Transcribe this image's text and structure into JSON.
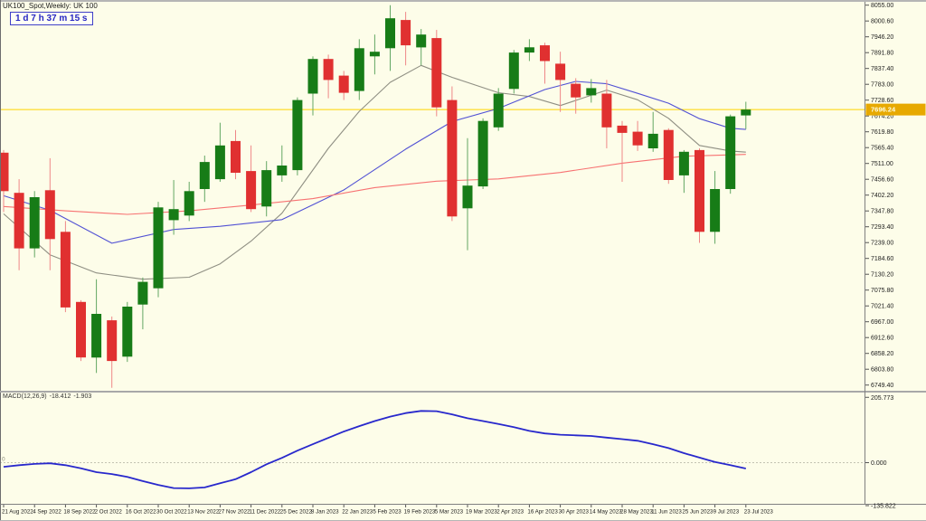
{
  "window": {
    "title": "UK100_Spot,Weekly: UK 100",
    "countdown": "1 d 7 h 37 m 15 s"
  },
  "colors": {
    "background": "#fdfde9",
    "bull": "#177c17",
    "bull_wick": "#63a763",
    "bear": "#e03030",
    "bear_wick": "#ef8787",
    "bid_line": "#ffd400",
    "price_tag_bg": "#e7a900",
    "price_tag_text": "#fffde2",
    "axis_text": "#1c1c1c",
    "macd_line": "#2828cc",
    "separator": "#a8a8a8"
  },
  "price_axis": {
    "current": "7696.24",
    "ticks": [
      "8055.00",
      "8000.60",
      "7946.20",
      "7891.80",
      "7837.40",
      "7783.00",
      "7728.60",
      "7674.20",
      "7619.80",
      "7565.40",
      "7511.00",
      "7456.60",
      "7402.20",
      "7347.80",
      "7293.40",
      "7239.00",
      "7184.60",
      "7130.20",
      "7075.80",
      "7021.40",
      "6967.00",
      "6912.60",
      "6858.20",
      "6803.80",
      "6749.40"
    ]
  },
  "time_axis": {
    "labels": [
      "21 Aug 2022",
      "4 Sep 2022",
      "18 Sep 2022",
      "2 Oct 2022",
      "16 Oct 2022",
      "30 Oct 2022",
      "13 Nov 2022",
      "27 Nov 2022",
      "11 Dec 2022",
      "25 Dec 2022",
      "8 Jan 2023",
      "22 Jan 2023",
      "5 Feb 2023",
      "19 Feb 2023",
      "5 Mar 2023",
      "19 Mar 2023",
      "2 Apr 2023",
      "16 Apr 2023",
      "30 Apr 2023",
      "14 May 2023",
      "28 May 2023",
      "11 Jun 2023",
      "25 Jun 2023",
      "9 Jul 2023",
      "23 Jul 2023"
    ]
  },
  "macd": {
    "name": "MACD(12,26,9)",
    "main_value": "-18.412",
    "signal_value": "-1.903",
    "zero_label": "0",
    "axis_ticks": [
      "205.773",
      "0.000",
      "-135.822"
    ]
  },
  "chart_data": {
    "type": "candlestick",
    "symbol": "UK100_Spot",
    "timeframe": "Weekly",
    "title": "UK100_Spot,Weekly: UK 100",
    "ylim": [
      6749.4,
      8055.0
    ],
    "current_price": 7696.24,
    "grid": "off",
    "dates": [
      "21 Aug 2022",
      "28 Aug 2022",
      "4 Sep 2022",
      "11 Sep 2022",
      "18 Sep 2022",
      "25 Sep 2022",
      "2 Oct 2022",
      "9 Oct 2022",
      "16 Oct 2022",
      "23 Oct 2022",
      "30 Oct 2022",
      "6 Nov 2022",
      "13 Nov 2022",
      "20 Nov 2022",
      "27 Nov 2022",
      "4 Dec 2022",
      "11 Dec 2022",
      "18 Dec 2022",
      "25 Dec 2022",
      "1 Jan 2023",
      "8 Jan 2023",
      "15 Jan 2023",
      "22 Jan 2023",
      "29 Jan 2023",
      "5 Feb 2023",
      "12 Feb 2023",
      "19 Feb 2023",
      "26 Feb 2023",
      "5 Mar 2023",
      "12 Mar 2023",
      "19 Mar 2023",
      "26 Mar 2023",
      "2 Apr 2023",
      "9 Apr 2023",
      "16 Apr 2023",
      "23 Apr 2023",
      "30 Apr 2023",
      "7 May 2023",
      "14 May 2023",
      "21 May 2023",
      "28 May 2023",
      "4 Jun 2023",
      "11 Jun 2023",
      "18 Jun 2023",
      "25 Jun 2023",
      "2 Jul 2023",
      "9 Jul 2023",
      "16 Jul 2023",
      "23 Jul 2023"
    ],
    "candles_ohlc": [
      [
        7548,
        7557,
        7344,
        7416
      ],
      [
        7410,
        7457,
        7144,
        7219
      ],
      [
        7219,
        7416,
        7188,
        7395
      ],
      [
        7419,
        7529,
        7144,
        7251
      ],
      [
        7276,
        7313,
        7000,
        7016
      ],
      [
        7035,
        7041,
        6832,
        6844
      ],
      [
        6844,
        7113,
        6791,
        6994
      ],
      [
        6972,
        6985,
        6740,
        6832
      ],
      [
        6847,
        7035,
        6829,
        7019
      ],
      [
        7026,
        7119,
        6941,
        7104
      ],
      [
        7082,
        7379,
        7051,
        7360
      ],
      [
        7316,
        7454,
        7266,
        7354
      ],
      [
        7332,
        7448,
        7313,
        7416
      ],
      [
        7423,
        7538,
        7379,
        7516
      ],
      [
        7457,
        7651,
        7448,
        7573
      ],
      [
        7588,
        7626,
        7457,
        7479
      ],
      [
        7485,
        7573,
        7344,
        7354
      ],
      [
        7363,
        7519,
        7329,
        7488
      ],
      [
        7470,
        7573,
        7448,
        7504
      ],
      [
        7488,
        7738,
        7470,
        7729
      ],
      [
        7751,
        7879,
        7676,
        7870
      ],
      [
        7870,
        7885,
        7735,
        7798
      ],
      [
        7813,
        7829,
        7729,
        7754
      ],
      [
        7760,
        7938,
        7729,
        7907
      ],
      [
        7879,
        7954,
        7817,
        7895
      ],
      [
        7907,
        8055,
        7829,
        8010
      ],
      [
        8004,
        8032,
        7848,
        7917
      ],
      [
        7910,
        7973,
        7848,
        7954
      ],
      [
        7942,
        7970,
        7673,
        7704
      ],
      [
        7729,
        7776,
        7313,
        7329
      ],
      [
        7357,
        7598,
        7213,
        7435
      ],
      [
        7432,
        7666,
        7423,
        7657
      ],
      [
        7635,
        7770,
        7623,
        7751
      ],
      [
        7767,
        7901,
        7751,
        7892
      ],
      [
        7892,
        7938,
        7863,
        7910
      ],
      [
        7917,
        7926,
        7785,
        7863
      ],
      [
        7854,
        7895,
        7688,
        7798
      ],
      [
        7785,
        7804,
        7682,
        7738
      ],
      [
        7745,
        7801,
        7720,
        7770
      ],
      [
        7751,
        7798,
        7563,
        7635
      ],
      [
        7641,
        7657,
        7448,
        7616
      ],
      [
        7620,
        7657,
        7554,
        7573
      ],
      [
        7563,
        7688,
        7551,
        7613
      ],
      [
        7626,
        7632,
        7441,
        7454
      ],
      [
        7470,
        7557,
        7410,
        7551
      ],
      [
        7557,
        7563,
        7238,
        7276
      ],
      [
        7276,
        7485,
        7235,
        7423
      ],
      [
        7423,
        7679,
        7407,
        7673
      ],
      [
        7676,
        7723,
        7629,
        7696.24
      ]
    ],
    "overlays": [
      {
        "name": "ma-slow",
        "color": "#f77272",
        "points": [
          [
            0,
            7363
          ],
          [
            4,
            7348
          ],
          [
            8,
            7336
          ],
          [
            12,
            7348
          ],
          [
            16,
            7368
          ],
          [
            20,
            7390
          ],
          [
            24,
            7428
          ],
          [
            28,
            7450
          ],
          [
            32,
            7458
          ],
          [
            36,
            7480
          ],
          [
            40,
            7512
          ],
          [
            44,
            7536
          ],
          [
            48,
            7542
          ]
        ]
      },
      {
        "name": "ma-mid",
        "color": "#5151d4",
        "points": [
          [
            0,
            7400
          ],
          [
            3,
            7350
          ],
          [
            7,
            7237
          ],
          [
            11,
            7284
          ],
          [
            14,
            7295
          ],
          [
            18,
            7318
          ],
          [
            22,
            7420
          ],
          [
            26,
            7560
          ],
          [
            29,
            7655
          ],
          [
            32,
            7700
          ],
          [
            35,
            7765
          ],
          [
            37,
            7793
          ],
          [
            39,
            7785
          ],
          [
            41,
            7752
          ],
          [
            43,
            7718
          ],
          [
            45,
            7665
          ],
          [
            47,
            7632
          ],
          [
            48,
            7628
          ]
        ]
      },
      {
        "name": "ma-fast",
        "color": "#8f8f83",
        "points": [
          [
            0,
            7338
          ],
          [
            3,
            7197
          ],
          [
            6,
            7135
          ],
          [
            9,
            7113
          ],
          [
            12,
            7120
          ],
          [
            14,
            7166
          ],
          [
            16,
            7244
          ],
          [
            18,
            7340
          ],
          [
            21,
            7563
          ],
          [
            23,
            7690
          ],
          [
            25,
            7790
          ],
          [
            27,
            7848
          ],
          [
            29,
            7807
          ],
          [
            32,
            7754
          ],
          [
            34,
            7741
          ],
          [
            36,
            7710
          ],
          [
            39,
            7763
          ],
          [
            41,
            7730
          ],
          [
            43,
            7666
          ],
          [
            45,
            7573
          ],
          [
            47,
            7554
          ],
          [
            48,
            7550
          ]
        ]
      }
    ],
    "indicator": {
      "name": "MACD(12,26,9)",
      "type": "line",
      "ylim": [
        -135.822,
        205.773
      ],
      "displayed_values": [
        -18.412,
        -1.903
      ],
      "series": [
        -13,
        -8,
        -4,
        -2,
        -8,
        -18,
        -30,
        -36,
        -45,
        -58,
        -70,
        -80,
        -81,
        -78,
        -65,
        -52,
        -30,
        -5,
        15,
        38,
        58,
        78,
        98,
        115,
        131,
        145,
        156,
        163,
        162,
        152,
        140,
        131,
        122,
        112,
        100,
        92,
        88,
        86,
        84,
        79,
        74,
        69,
        58,
        46,
        30,
        16,
        2,
        -8,
        -18.4
      ]
    }
  }
}
